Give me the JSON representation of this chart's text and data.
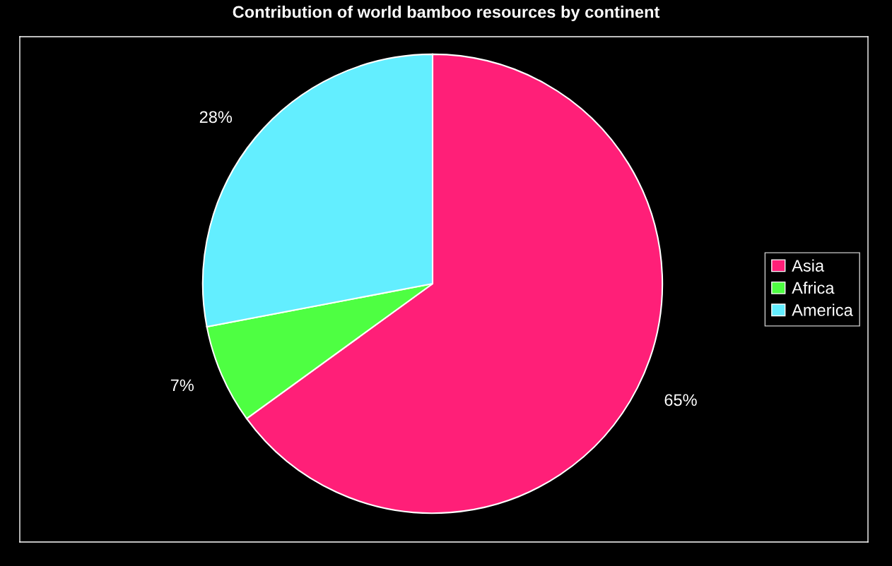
{
  "chart_data": {
    "type": "pie",
    "title": "Contribution of world bamboo resources by continent",
    "categories": [
      "Asia",
      "Africa",
      "America"
    ],
    "values": [
      65,
      7,
      28
    ],
    "value_labels": [
      "65%",
      "7%",
      "28%"
    ],
    "colors": [
      "#ff1f78",
      "#4eff42",
      "#63eeff"
    ],
    "legend": "right"
  }
}
